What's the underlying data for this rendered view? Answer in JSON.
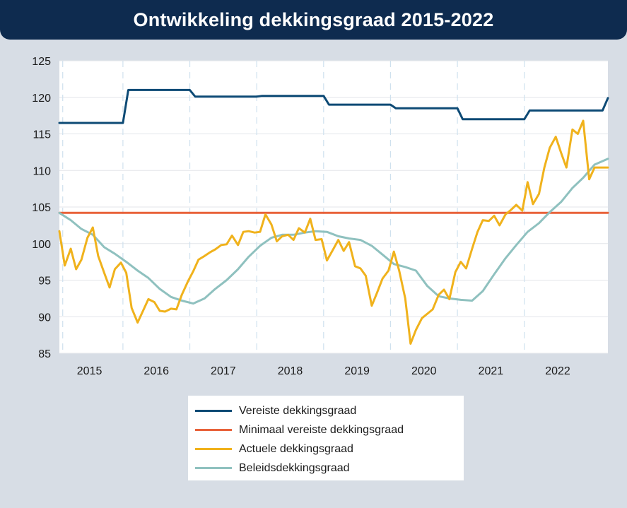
{
  "header": {
    "title": "Ontwikkeling dekkingsgraad 2015-2022"
  },
  "chart_data": {
    "type": "line",
    "title": "Ontwikkeling dekkingsgraad 2015-2022",
    "xlabel": "",
    "ylabel": "",
    "ylim": [
      85,
      125
    ],
    "yticks": [
      85,
      90,
      95,
      100,
      105,
      110,
      115,
      120,
      125
    ],
    "xlim": [
      2014.55,
      2022.75
    ],
    "year_labels": [
      "2015",
      "2016",
      "2017",
      "2018",
      "2019",
      "2020",
      "2021",
      "2022"
    ],
    "grid": true,
    "legend_position": "bottom",
    "series": [
      {
        "name": "Vereiste dekkingsgraad",
        "color": "#0d4a75",
        "step": true,
        "x": [
          2014.55,
          2015.5,
          2015.58,
          2016.5,
          2016.58,
          2017.5,
          2017.58,
          2018.5,
          2018.58,
          2019.5,
          2019.58,
          2020.5,
          2020.58,
          2021.5,
          2021.58,
          2022.67,
          2022.75
        ],
        "values": [
          116.5,
          116.5,
          121.0,
          121.0,
          120.1,
          120.1,
          120.2,
          120.2,
          119.0,
          119.0,
          118.5,
          118.5,
          117.0,
          117.0,
          118.2,
          118.2,
          119.9
        ]
      },
      {
        "name": "Minimaal vereiste dekkingsgraad",
        "color": "#e8623a",
        "x": [
          2014.55,
          2022.75
        ],
        "values": [
          104.2,
          104.2
        ]
      },
      {
        "name": "Actuele dekkingsgraad",
        "color": "#f0b21c",
        "x": [
          2014.55,
          2014.63,
          2014.72,
          2014.8,
          2014.88,
          2014.97,
          2015.05,
          2015.13,
          2015.22,
          2015.3,
          2015.38,
          2015.47,
          2015.55,
          2015.63,
          2015.72,
          2015.8,
          2015.88,
          2015.97,
          2016.05,
          2016.13,
          2016.22,
          2016.3,
          2016.38,
          2016.47,
          2016.55,
          2016.63,
          2016.72,
          2016.8,
          2016.88,
          2016.97,
          2017.05,
          2017.13,
          2017.22,
          2017.3,
          2017.38,
          2017.47,
          2017.55,
          2017.63,
          2017.72,
          2017.8,
          2017.88,
          2017.97,
          2018.05,
          2018.13,
          2018.22,
          2018.3,
          2018.38,
          2018.47,
          2018.55,
          2018.63,
          2018.72,
          2018.8,
          2018.88,
          2018.97,
          2019.05,
          2019.13,
          2019.22,
          2019.3,
          2019.38,
          2019.47,
          2019.55,
          2019.63,
          2019.72,
          2019.8,
          2019.88,
          2019.97,
          2020.05,
          2020.13,
          2020.22,
          2020.3,
          2020.38,
          2020.47,
          2020.55,
          2020.63,
          2020.72,
          2020.8,
          2020.88,
          2020.97,
          2021.05,
          2021.13,
          2021.22,
          2021.3,
          2021.38,
          2021.47,
          2021.55,
          2021.63,
          2021.72,
          2021.8,
          2021.88,
          2021.97,
          2022.05,
          2022.13,
          2022.22,
          2022.3,
          2022.38,
          2022.47,
          2022.55,
          2022.63,
          2022.72,
          2022.75
        ],
        "values": [
          101.7,
          97.0,
          99.3,
          96.5,
          97.8,
          100.8,
          102.2,
          98.3,
          96.0,
          94.0,
          96.5,
          97.4,
          96.0,
          91.2,
          89.2,
          90.8,
          92.4,
          92.0,
          90.8,
          90.7,
          91.1,
          91.0,
          93.0,
          94.8,
          96.2,
          97.8,
          98.3,
          98.8,
          99.2,
          99.8,
          99.9,
          101.1,
          99.8,
          101.6,
          101.7,
          101.5,
          101.6,
          104.0,
          102.6,
          100.3,
          101.0,
          101.2,
          100.5,
          102.1,
          101.5,
          103.4,
          100.5,
          100.6,
          97.7,
          99.0,
          100.5,
          99.0,
          100.2,
          96.9,
          96.6,
          95.6,
          91.5,
          93.3,
          95.2,
          96.3,
          98.9,
          96.3,
          92.5,
          86.3,
          88.2,
          89.8,
          90.4,
          91.0,
          93.0,
          93.7,
          92.4,
          96.1,
          97.5,
          96.6,
          99.3,
          101.6,
          103.2,
          103.1,
          103.8,
          102.5,
          104.0,
          104.6,
          105.3,
          104.5,
          108.4,
          105.4,
          106.8,
          110.4,
          113.1,
          114.6,
          112.4,
          110.4,
          115.6,
          115.0,
          116.8,
          108.8,
          110.4,
          110.4,
          110.4,
          110.4
        ]
      },
      {
        "name": "Beleidsdekkingsgraad",
        "color": "#8fc1bf",
        "x": [
          2014.55,
          2014.72,
          2014.88,
          2015.05,
          2015.22,
          2015.38,
          2015.55,
          2015.72,
          2015.88,
          2016.05,
          2016.22,
          2016.38,
          2016.55,
          2016.72,
          2016.88,
          2017.05,
          2017.22,
          2017.38,
          2017.55,
          2017.72,
          2017.88,
          2018.05,
          2018.22,
          2018.38,
          2018.55,
          2018.72,
          2018.88,
          2019.05,
          2019.22,
          2019.38,
          2019.55,
          2019.72,
          2019.88,
          2020.05,
          2020.22,
          2020.38,
          2020.55,
          2020.72,
          2020.88,
          2021.05,
          2021.22,
          2021.38,
          2021.55,
          2021.72,
          2021.88,
          2022.05,
          2022.22,
          2022.38,
          2022.55,
          2022.75
        ],
        "values": [
          104.2,
          103.2,
          102.0,
          101.2,
          99.5,
          98.6,
          97.5,
          96.3,
          95.3,
          93.8,
          92.7,
          92.2,
          91.8,
          92.5,
          93.8,
          95.0,
          96.5,
          98.2,
          99.7,
          100.8,
          101.2,
          101.2,
          101.5,
          101.7,
          101.6,
          101.0,
          100.7,
          100.5,
          99.7,
          98.5,
          97.2,
          96.8,
          96.3,
          94.2,
          92.8,
          92.5,
          92.3,
          92.2,
          93.5,
          95.8,
          98.0,
          99.8,
          101.6,
          102.8,
          104.3,
          105.7,
          107.6,
          109.0,
          110.8,
          111.6
        ]
      }
    ]
  }
}
